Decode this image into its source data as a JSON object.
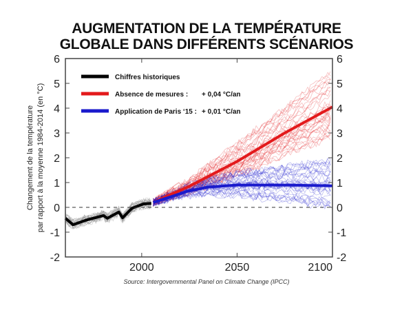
{
  "title_line1": "AUGMENTATION  DE LA TEMPÉRATURE",
  "title_line2": "GLOBALE DANS DIFFÉRENTS SCÉNARIOS",
  "source": "Source: Intergovernmental Panel on Climate Change (IPCC)",
  "chart_data": {
    "type": "line",
    "ylabel_line1": "Changement  de la température",
    "ylabel_line2": "par rapport à la moyenne 1984-2014 (en °C)",
    "xlim": [
      1960,
      2100
    ],
    "ylim": [
      -2,
      6
    ],
    "x_ticks": [
      2000,
      2050,
      2100
    ],
    "y_ticks": [
      -2,
      -1,
      0,
      1,
      2,
      3,
      4,
      5,
      6
    ],
    "reference_line": 0,
    "legend_position": "top-left",
    "series": [
      {
        "name": "Chiffres historiques",
        "rate": "",
        "color": "#000000",
        "x": [
          1960,
          1964,
          1971,
          1980,
          1982,
          1988,
          1990,
          1995,
          2001,
          2005
        ],
        "y": [
          -0.44,
          -0.7,
          -0.51,
          -0.33,
          -0.44,
          -0.19,
          -0.42,
          -0.03,
          0.14,
          0.16
        ]
      },
      {
        "name": "Absence de mesures :",
        "rate": "+ 0,04 °C/an",
        "color": "#e31a1c",
        "x": [
          2006,
          2025,
          2050,
          2075,
          2100
        ],
        "y": [
          0.2,
          0.85,
          1.85,
          3.0,
          4.05
        ],
        "ensemble_range_2100": [
          2.7,
          5.5
        ]
      },
      {
        "name": "Application de Paris ‘15 :",
        "rate": "+ 0,01 °C/an",
        "color": "#1a1acc",
        "x": [
          2006,
          2015,
          2024,
          2035,
          2050,
          2075,
          2100
        ],
        "y": [
          0.2,
          0.42,
          0.65,
          0.82,
          0.9,
          0.9,
          0.87
        ],
        "ensemble_range_2100": [
          0.0,
          1.9
        ]
      }
    ]
  }
}
